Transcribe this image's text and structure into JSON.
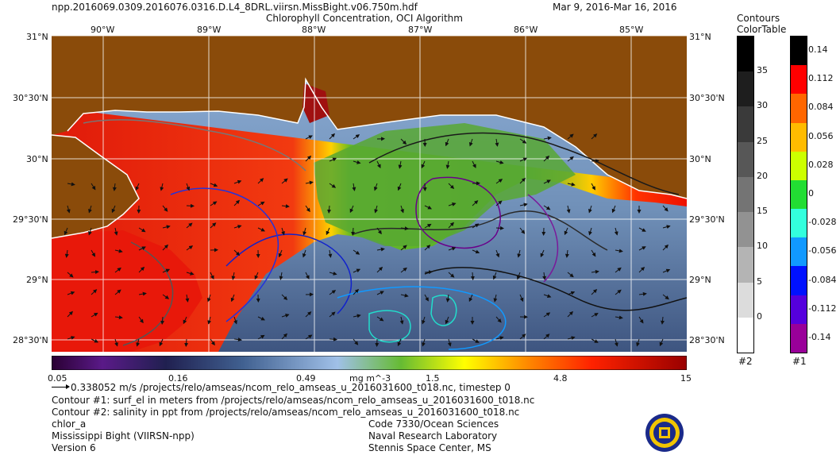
{
  "header": {
    "filename": "npp.2016069.0309.2016076.0316.D.L4_8DRL.viirsn.MissBight.v06.750m.hdf",
    "product": "Chlorophyll Concentration, OCI Algorithm",
    "date_range": "Mar  9, 2016-Mar 16, 2016"
  },
  "map": {
    "top_lon_labels": [
      "90°W",
      "89°W",
      "88°W",
      "87°W",
      "86°W",
      "85°W"
    ],
    "left_lat_labels": [
      "31°N",
      "30°30'N",
      "30°N",
      "29°30'N",
      "29°N",
      "28°30'N"
    ],
    "right_lat_labels": [
      "31°N",
      "30°30'N",
      "30°N",
      "29°30'N",
      "29°N",
      "28°30'N"
    ],
    "land_color": "#8a4b0a"
  },
  "colorbar": {
    "labels": [
      "0.05",
      "0.16",
      "0.49",
      "1.5",
      "4.8",
      "15"
    ],
    "units": "mg m^-3",
    "scale": "log"
  },
  "legend_right": {
    "title_line1": "Contours",
    "title_line2": "ColorTable",
    "contours2": {
      "labels": [
        "35",
        "30",
        "25",
        "20",
        "15",
        "10",
        "5",
        "0"
      ],
      "colors": [
        "#000000",
        "#1e1e1e",
        "#3a3a3a",
        "#575757",
        "#747474",
        "#929292",
        "#b4b4b4",
        "#dcdcdc",
        "#ffffff"
      ],
      "tag": "#2"
    },
    "contours1": {
      "labels": [
        "0.14",
        "0.112",
        "0.084",
        "0.056",
        "0.028",
        "0",
        "-0.028",
        "-0.056",
        "-0.084",
        "-0.112",
        "-0.14"
      ],
      "colors": [
        "#000000",
        "#ff0000",
        "#ff6600",
        "#ffbb00",
        "#ccff00",
        "#22dd33",
        "#33ffdd",
        "#1199ff",
        "#0011ff",
        "#5500dd",
        "#990099"
      ],
      "tag": "#1"
    }
  },
  "footer": {
    "vector_line": "0.338052 m/s /projects/relo/amseas/ncom_relo_amseas_u_2016031600_t018.nc, timestep 0",
    "contour1_line": "Contour #1: surf_el in meters from /projects/relo/amseas/ncom_relo_amseas_u_2016031600_t018.nc",
    "contour2_line": "Contour #2: salinity in ppt from /projects/relo/amseas/ncom_relo_amseas_u_2016031600_t018.nc",
    "var": "chlor_a",
    "region": "Mississippi Bight (VIIRSN-npp)",
    "version": "Version 6",
    "org1": "Code 7330/Ocean Sciences",
    "org2": "Naval Research Laboratory",
    "org3": "Stennis Space Center, MS"
  }
}
